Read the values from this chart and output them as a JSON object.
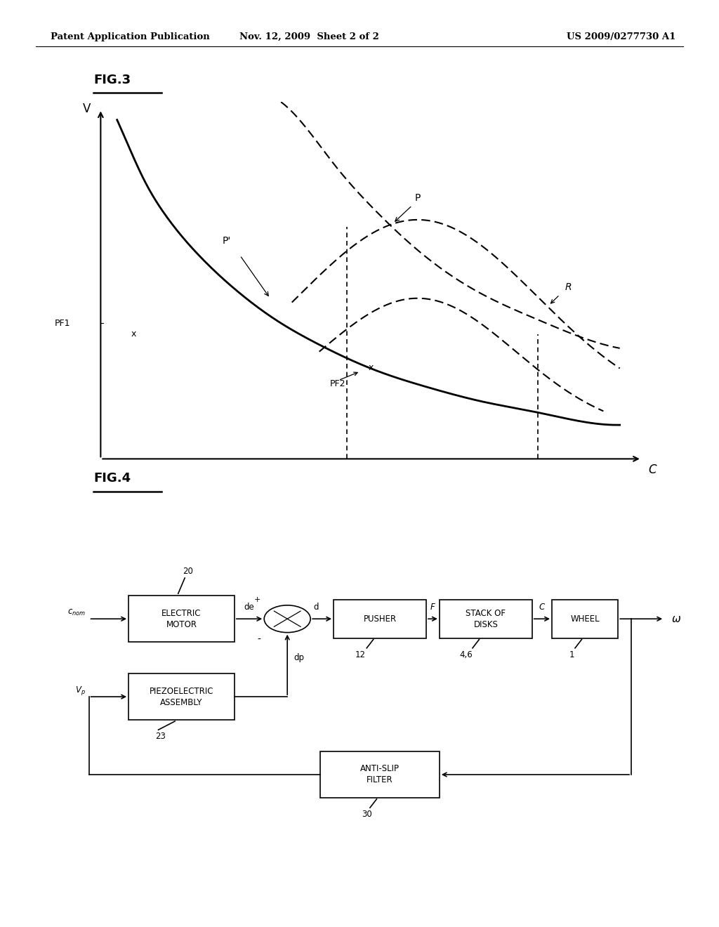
{
  "header_left": "Patent Application Publication",
  "header_mid": "Nov. 12, 2009  Sheet 2 of 2",
  "header_right": "US 2009/0277730 A1",
  "fig3_title": "FIG.3",
  "fig4_title": "FIG.4",
  "background": "#ffffff",
  "text_color": "#000000"
}
